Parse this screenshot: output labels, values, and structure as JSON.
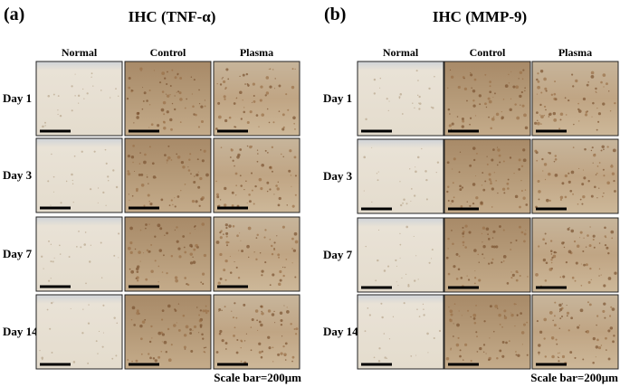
{
  "panels": [
    {
      "label": "(a)",
      "title": "IHC (TNF-α)",
      "columns": [
        "Normal",
        "Control",
        "Plasma"
      ],
      "rows": [
        "Day 1",
        "Day 3",
        "Day 7",
        "Day 14"
      ],
      "scale_bar": "Scale bar=200μm"
    },
    {
      "label": "(b)",
      "title": "IHC (MMP-9)",
      "columns": [
        "Normal",
        "Control",
        "Plasma"
      ],
      "rows": [
        "Day 1",
        "Day 3",
        "Day 7",
        "Day 14"
      ],
      "scale_bar": "Scale bar=200μm"
    }
  ]
}
